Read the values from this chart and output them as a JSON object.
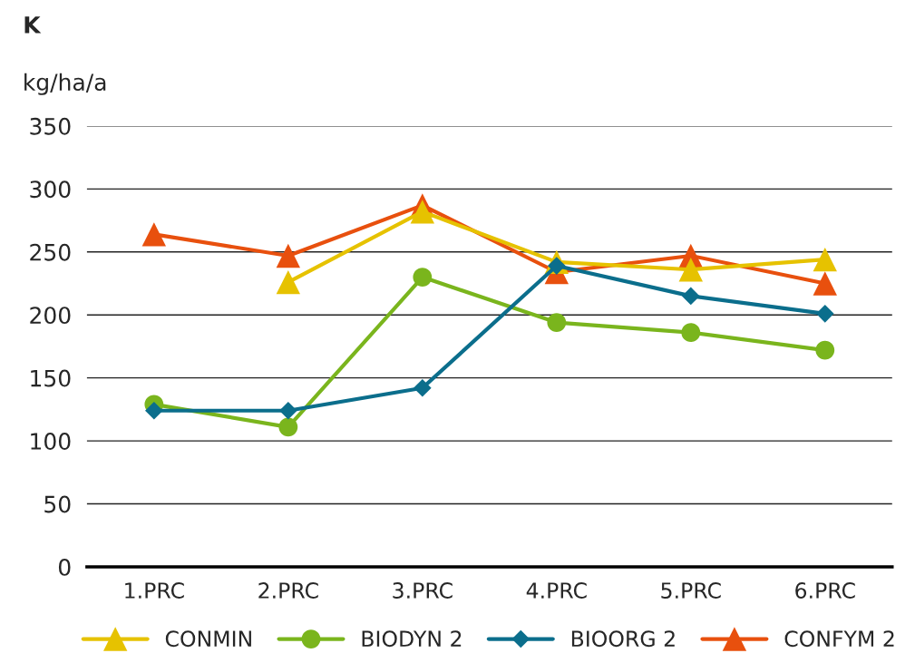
{
  "chart_data": {
    "type": "line",
    "title": "K",
    "ylabel": "kg/ha/a",
    "categories": [
      "1.PRC",
      "2.PRC",
      "3.PRC",
      "4.PRC",
      "5.PRC",
      "6.PRC"
    ],
    "series": [
      {
        "name": "CONMIN",
        "color": "#e6c200",
        "marker": "triangle",
        "values": [
          null,
          226,
          282,
          242,
          236,
          244
        ]
      },
      {
        "name": "BIODYN 2",
        "color": "#7ab51d",
        "marker": "circle",
        "values": [
          129,
          111,
          230,
          194,
          186,
          172
        ]
      },
      {
        "name": "BIOORG 2",
        "color": "#0b6e8c",
        "marker": "diamond",
        "values": [
          124,
          124,
          142,
          239,
          215,
          201
        ]
      },
      {
        "name": "CONFYM 2",
        "color": "#e8500e",
        "marker": "triangle",
        "values": [
          264,
          247,
          287,
          234,
          247,
          225
        ]
      }
    ],
    "ylim": [
      0,
      350
    ],
    "yticks": [
      0,
      50,
      100,
      150,
      200,
      250,
      300,
      350
    ],
    "grid": "y",
    "legend": "bottom",
    "line_style": "solid"
  }
}
